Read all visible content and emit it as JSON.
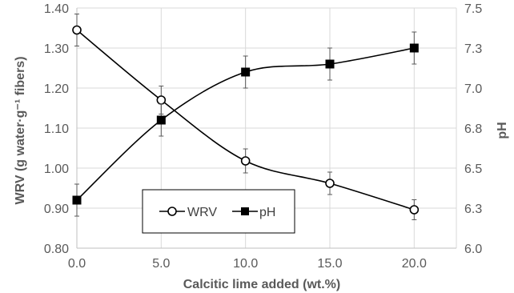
{
  "chart_data": {
    "type": "line",
    "title": "",
    "xlabel": "Calcitic lime added (wt.%)",
    "ylabel": "WRV (g water·g⁻¹ fibers)",
    "y2label": "pH",
    "x": [
      0,
      5,
      10,
      15,
      20
    ],
    "x_tick_labels": [
      "0.0",
      "5.0",
      "10.0",
      "15.0",
      "20.0"
    ],
    "xlim": [
      0,
      22.5
    ],
    "ylim": [
      0.8,
      1.4
    ],
    "y_tick_labels": [
      "0.80",
      "0.90",
      "1.00",
      "1.10",
      "1.20",
      "1.30",
      "1.40"
    ],
    "y2lim": [
      6.0,
      7.5
    ],
    "y2_tick_labels": [
      "6.0",
      "6.3",
      "6.5",
      "6.8",
      "7.0",
      "7.3",
      "7.5"
    ],
    "grid": true,
    "legend_position": "lower-center",
    "series": [
      {
        "name": "WRV",
        "axis": "left",
        "marker": "open-circle",
        "color": "#000000",
        "values": [
          1.345,
          1.17,
          1.018,
          0.962,
          0.896
        ],
        "error": [
          0.04,
          0.035,
          0.03,
          0.028,
          0.025
        ]
      },
      {
        "name": "pH",
        "axis": "right",
        "marker": "filled-square",
        "color": "#000000",
        "values": [
          6.3,
          6.8,
          7.1,
          7.15,
          7.25
        ],
        "error": [
          0.1,
          0.1,
          0.1,
          0.1,
          0.1
        ]
      }
    ]
  }
}
